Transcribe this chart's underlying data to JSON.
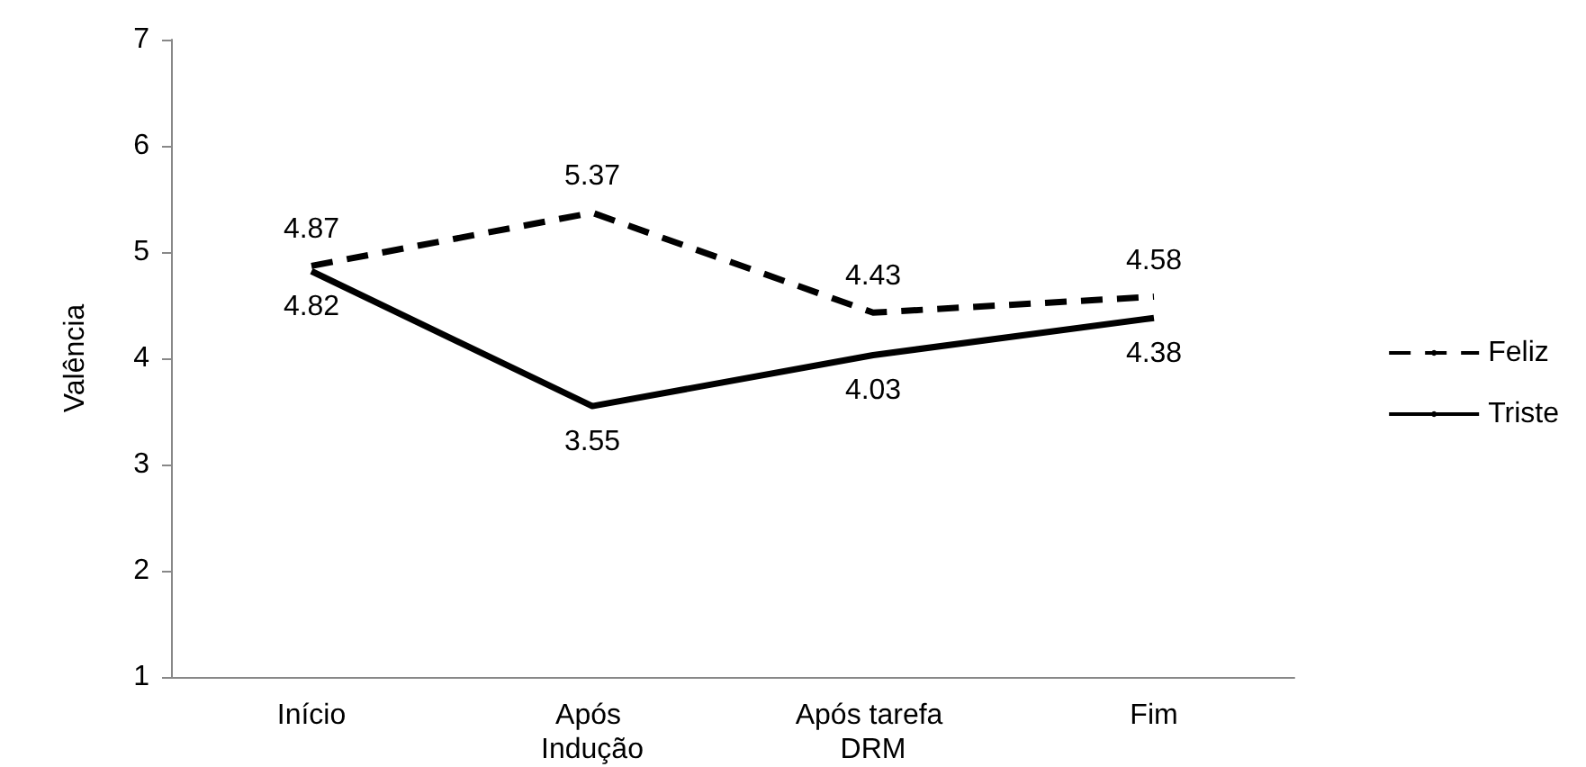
{
  "chart_data": {
    "type": "line",
    "ylabel": "Valência",
    "categories": [
      "Início",
      "Após Indução",
      "Após tarefa DRM",
      "Fim"
    ],
    "series": [
      {
        "name": "Feliz",
        "color": "#000000",
        "line_style": "dashed",
        "values": [
          4.87,
          5.37,
          4.43,
          4.58
        ]
      },
      {
        "name": "Triste",
        "color": "#000000",
        "line_style": "solid",
        "values": [
          4.82,
          3.55,
          4.03,
          4.38
        ]
      }
    ],
    "ylim": [
      1,
      7
    ],
    "yticks": [
      1,
      2,
      3,
      4,
      5,
      6,
      7
    ],
    "grid": false,
    "legend": "right",
    "marker": "none",
    "data_labels": true
  }
}
